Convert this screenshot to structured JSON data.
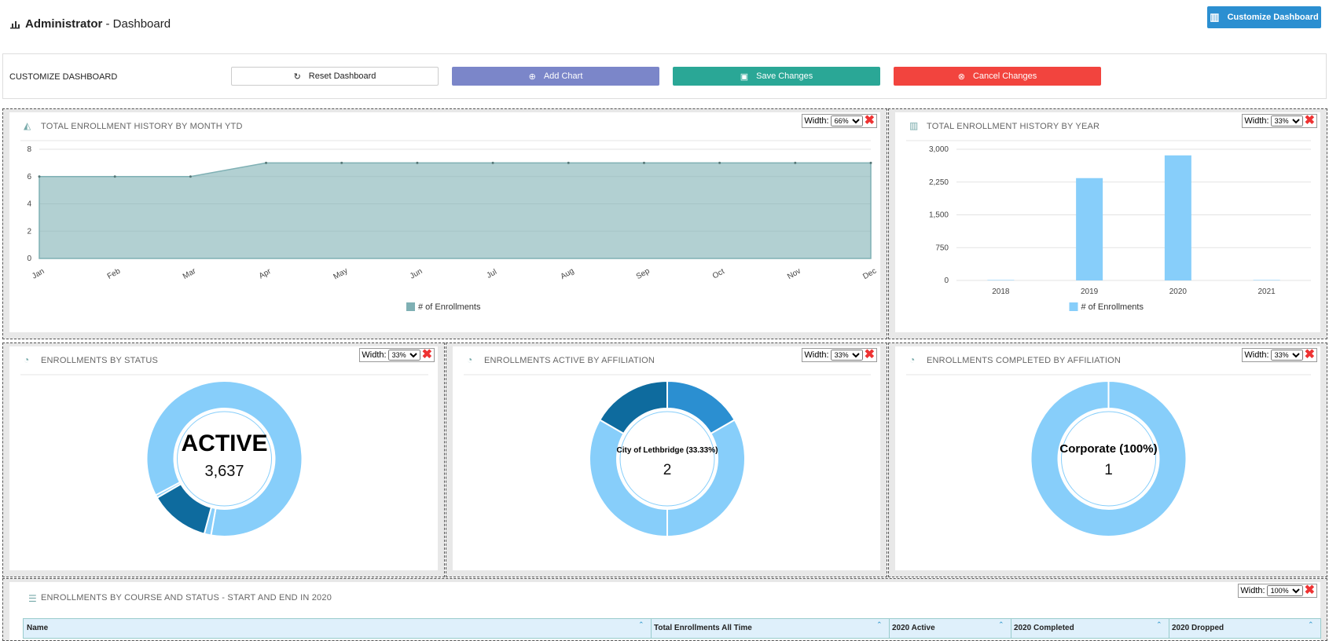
{
  "header": {
    "title": "Administrator",
    "subtitle": "- Dashboard",
    "customize_button": "Customize Dashboard"
  },
  "toolbar": {
    "label": "CUSTOMIZE DASHBOARD",
    "buttons": [
      "Reset Dashboard",
      "Add Chart",
      "Save Changes",
      "Cancel Changes"
    ]
  },
  "width_label": "Width:",
  "chart_data": [
    {
      "type": "area",
      "title": "TOTAL ENROLLMENT HISTORY BY MONTH YTD",
      "width": "66%",
      "categories": [
        "Jan",
        "Feb",
        "Mar",
        "Apr",
        "May",
        "Jun",
        "Jul",
        "Aug",
        "Sep",
        "Oct",
        "Nov",
        "Dec"
      ],
      "series": [
        {
          "name": "# of Enrollments",
          "color": "#7fb0b4",
          "values": [
            6,
            6,
            6,
            7,
            7,
            7,
            7,
            7,
            7,
            7,
            7,
            7
          ]
        }
      ],
      "ylim": [
        0,
        8
      ],
      "yticks": [
        0,
        2,
        4,
        6,
        8
      ],
      "grid": true
    },
    {
      "type": "bar",
      "title": "TOTAL ENROLLMENT HISTORY BY YEAR",
      "width": "33%",
      "categories": [
        "2018",
        "2019",
        "2020",
        "2021"
      ],
      "series": [
        {
          "name": "# of Enrollments",
          "color": "#87cefa",
          "values": [
            10,
            2340,
            2860,
            10
          ]
        }
      ],
      "ylim": [
        0,
        3000
      ],
      "yticks": [
        0,
        750,
        {
          "value": 1500,
          "label": "1,500"
        },
        {
          "value": 2250,
          "label": "2,250"
        },
        {
          "value": 3000,
          "label": "3,000"
        }
      ],
      "grid": true
    },
    {
      "type": "pie",
      "title": "ENROLLMENTS BY STATUS",
      "width": "33%",
      "values": [
        3637,
        60,
        530,
        25
      ],
      "colors": [
        "#87cefa",
        "#87cefa",
        "#0e6b9e",
        "#87cefa"
      ],
      "center_name": "ACTIVE",
      "center": {
        "value": 3637,
        "label": "3,637"
      }
    },
    {
      "type": "pie",
      "title": "ENROLLMENTS ACTIVE BY AFFILIATION",
      "width": "33%",
      "values": [
        1,
        2,
        2,
        1
      ],
      "colors": [
        "#2b8fd1",
        "#87cefa",
        "#87cefa",
        "#0e6b9e"
      ],
      "center_name": "City of Lethbridge (33.33%)",
      "center": 2
    },
    {
      "type": "pie",
      "title": "ENROLLMENTS COMPLETED BY AFFILIATION",
      "width": "33%",
      "values": [
        1
      ],
      "colors": [
        "#87cefa"
      ],
      "center_name": "Corporate (100%)",
      "center": 1
    }
  ],
  "table": {
    "title": "ENROLLMENTS BY COURSE AND STATUS - START AND END IN 2020",
    "width": "100%",
    "columns": [
      "Name",
      "Total Enrollments All Time",
      "2020 Active",
      "2020 Completed",
      "2020 Dropped"
    ]
  }
}
